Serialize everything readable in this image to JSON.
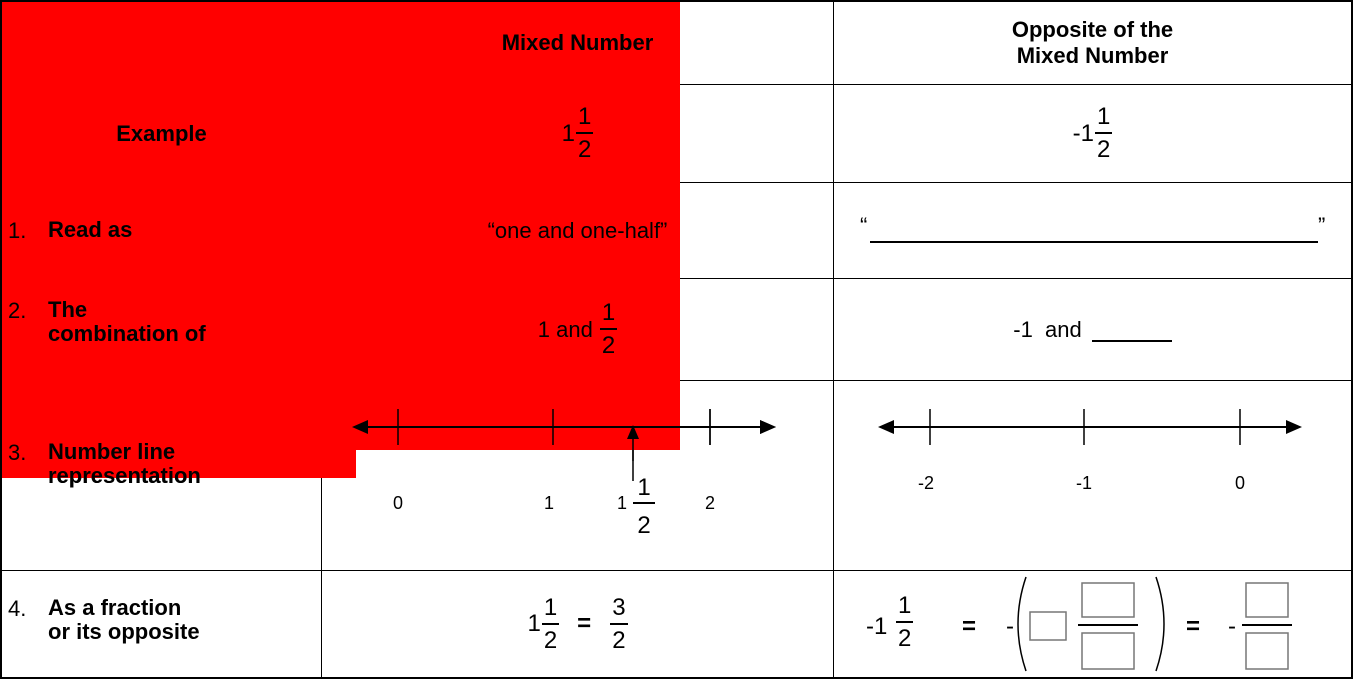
{
  "table": {
    "header": {
      "col1": "",
      "col2": "Mixed Number",
      "col3_line1": "Opposite of the",
      "col3_line2": "Mixed Number"
    },
    "example": {
      "label": "Example",
      "mixed": {
        "whole": "1",
        "num": "1",
        "den": "2"
      },
      "opposite": {
        "whole": "-1",
        "num": "1",
        "den": "2"
      }
    },
    "row1": {
      "number": "1.",
      "label": "Read as",
      "mixed_text": "“one and one-half”",
      "open_quote": "“",
      "close_quote": "”"
    },
    "row2": {
      "number": "2.",
      "label_line1": "The",
      "label_line2": "combination of",
      "mixed_prefix": "1 and",
      "mixed_frac": {
        "num": "1",
        "den": "2"
      },
      "opposite_text": "-1  and"
    },
    "row3": {
      "number": "3.",
      "label_line1": "Number line",
      "label_line2": "representation",
      "mixed_ticks": [
        "0",
        "1",
        "2"
      ],
      "mixed_marker": {
        "whole": "1",
        "num": "1",
        "den": "2"
      },
      "opposite_ticks": [
        "-2",
        "-1",
        "0"
      ]
    },
    "row4": {
      "number": "4.",
      "label_line1": "As a fraction",
      "label_line2": "or its opposite",
      "mixed_lhs": {
        "whole": "1",
        "num": "1",
        "den": "2"
      },
      "equals": "=",
      "mixed_rhs": {
        "num": "3",
        "den": "2"
      },
      "opposite_lhs": {
        "whole": "-1",
        "num": "1",
        "den": "2"
      },
      "minus": "-"
    }
  },
  "colors": {
    "redaction": "#ff0000",
    "grid": "#000000"
  }
}
